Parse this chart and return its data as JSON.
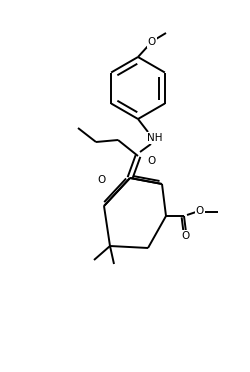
{
  "background_color": "#ffffff",
  "line_color": "#000000",
  "line_width": 1.4,
  "font_size": 7.0,
  "figsize": [
    2.5,
    3.72
  ],
  "dpi": 100,
  "xlim": [
    0,
    250
  ],
  "ylim": [
    0,
    372
  ]
}
